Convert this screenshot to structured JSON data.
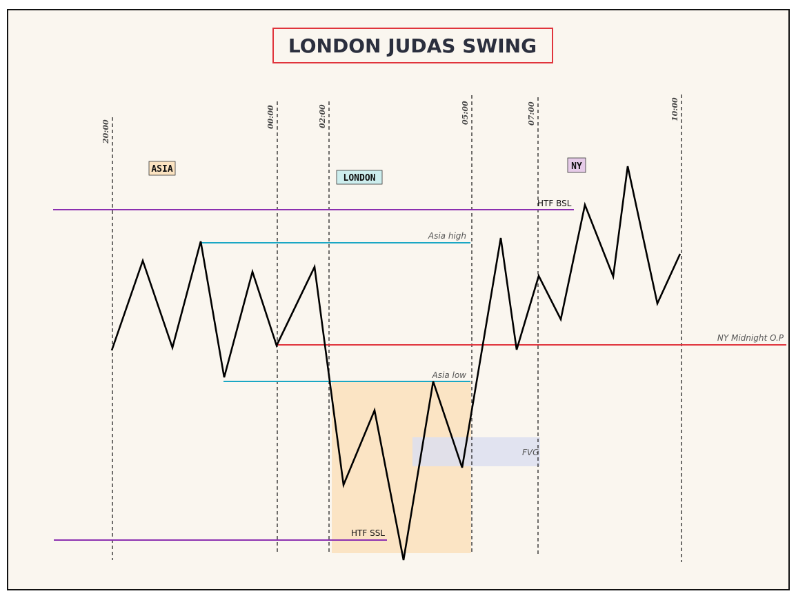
{
  "title": "LONDON JUDAS SWING",
  "time_markers": [
    "20:00",
    "00:00",
    "02:00",
    "05:00",
    "07:00",
    "10:00"
  ],
  "sessions": {
    "asia": {
      "label": "ASIA",
      "color": "#fbe3c1"
    },
    "london": {
      "label": "LONDON",
      "color": "#cdeeee"
    },
    "ny": {
      "label": "NY",
      "color": "#e6cbe8"
    }
  },
  "levels": {
    "htf_bsl": {
      "label": "HTF BSL",
      "color": "#8b2fb0"
    },
    "asia_high": {
      "label": "Asia high",
      "color": "#1aa7c4"
    },
    "ny_midnight_op": {
      "label": "NY Midnight O.P",
      "color": "#e0343c"
    },
    "asia_low": {
      "label": "Asia low",
      "color": "#1aa7c4"
    },
    "htf_ssl": {
      "label": "HTF SSL",
      "color": "#8b2fb0"
    }
  },
  "zones": {
    "fvg": {
      "label": "FVG",
      "color": "#dcdff0"
    },
    "judas_zone": {
      "color": "#fbe3c1"
    }
  },
  "colors": {
    "background": "#faf6ef",
    "price": "#000000",
    "title_border": "#e0343c"
  }
}
